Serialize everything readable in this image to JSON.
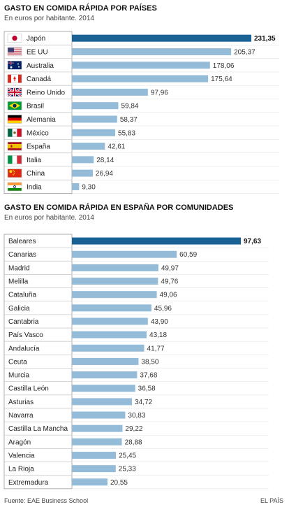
{
  "chart_data": [
    {
      "type": "bar",
      "orientation": "horizontal",
      "title": "GASTO EN COMIDA RÁPIDA POR PAÍSES",
      "subtitle": "En euros por habitante. 2014",
      "categories": [
        "Japón",
        "EE UU",
        "Australia",
        "Canadá",
        "Reino Unido",
        "Brasil",
        "Alemania",
        "México",
        "España",
        "Italia",
        "China",
        "India"
      ],
      "values": [
        231.35,
        205.37,
        178.06,
        175.64,
        97.96,
        59.84,
        58.37,
        55.83,
        42.61,
        28.14,
        26.94,
        9.3
      ],
      "value_labels": [
        "231,35",
        "205,37",
        "178,06",
        "175,64",
        "97,96",
        "59,84",
        "58,37",
        "55,83",
        "42,61",
        "28,14",
        "26,94",
        "9,30"
      ],
      "flags": [
        "japan",
        "usa",
        "australia",
        "canada",
        "uk",
        "brazil",
        "germany",
        "mexico",
        "spain",
        "italy",
        "china",
        "india"
      ],
      "highlight_index": 0,
      "xlim": [
        0,
        231.35
      ]
    },
    {
      "type": "bar",
      "orientation": "horizontal",
      "title": "GASTO EN COMIDA RÁPIDA EN ESPAÑA POR COMUNIDADES",
      "subtitle": "En euros por habitante. 2014",
      "categories": [
        "Baleares",
        "Canarias",
        "Madrid",
        "Melilla",
        "Cataluña",
        "Galicia",
        "Cantabria",
        "País Vasco",
        "Andalucía",
        "Ceuta",
        "Murcia",
        "Castilla León",
        "Asturias",
        "Navarra",
        "Castilla La Mancha",
        "Aragón",
        "Valencia",
        "La Rioja",
        "Extremadura"
      ],
      "values": [
        97.63,
        60.59,
        49.97,
        49.76,
        49.06,
        45.96,
        43.9,
        43.18,
        41.77,
        38.5,
        37.68,
        36.58,
        34.72,
        30.83,
        29.22,
        28.88,
        25.45,
        25.33,
        20.55
      ],
      "value_labels": [
        "97,63",
        "60,59",
        "49,97",
        "49,76",
        "49,06",
        "45,96",
        "43,90",
        "43,18",
        "41,77",
        "38,50",
        "37,68",
        "36,58",
        "34,72",
        "30,83",
        "29,22",
        "28,88",
        "25,45",
        "25,33",
        "20,55"
      ],
      "highlight_index": 0,
      "xlim": [
        0,
        97.63
      ]
    }
  ],
  "colors": {
    "highlight": "#1a6296",
    "bar": "#94bcd9",
    "grid": "#cccccc"
  },
  "footer": {
    "source": "Fuente: EAE Business School",
    "credit": "EL PAÍS"
  }
}
